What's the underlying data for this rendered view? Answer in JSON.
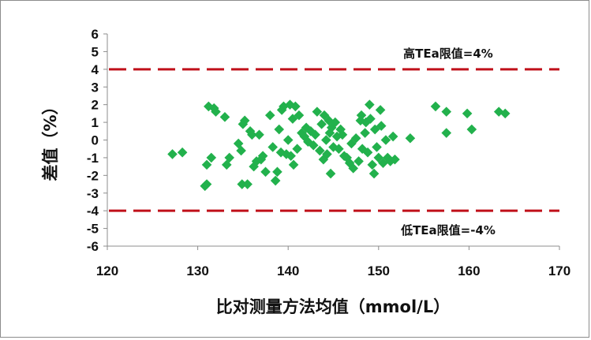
{
  "chart_data": {
    "type": "scatter",
    "title": "",
    "xlabel": "比对测量方法均值（mmol/L）",
    "ylabel": "差值（%）",
    "xlim": [
      120,
      170
    ],
    "ylim": [
      -6,
      6
    ],
    "x_ticks": [
      "120",
      "130",
      "140",
      "150",
      "160",
      "170"
    ],
    "y_ticks": [
      "-6",
      "-5",
      "-4",
      "-3",
      "-2",
      "-1",
      "0",
      "1",
      "2",
      "3",
      "4",
      "5",
      "6"
    ],
    "grid": false,
    "legend": "none",
    "colors": {
      "points": "#22b14c",
      "limit_lines": "#c0101a"
    },
    "reference_lines": [
      {
        "y": 4,
        "label": "高TEa限值=4%",
        "style": "dashed"
      },
      {
        "y": -4,
        "label": "低TEa限值=-4%",
        "style": "dashed"
      }
    ],
    "series": [
      {
        "points": [
          [
            127.2,
            -0.8
          ],
          [
            128.3,
            -0.7
          ],
          [
            130.8,
            -2.6
          ],
          [
            131.0,
            -2.5
          ],
          [
            131.0,
            -1.4
          ],
          [
            131.2,
            1.9
          ],
          [
            131.5,
            -1.0
          ],
          [
            131.8,
            1.8
          ],
          [
            132.0,
            1.6
          ],
          [
            133.0,
            1.3
          ],
          [
            133.2,
            -1.4
          ],
          [
            133.5,
            -1.0
          ],
          [
            134.5,
            -0.2
          ],
          [
            134.8,
            -0.6
          ],
          [
            134.9,
            -2.5
          ],
          [
            135.0,
            0.9
          ],
          [
            135.2,
            1.1
          ],
          [
            135.5,
            -2.5
          ],
          [
            135.8,
            0.5
          ],
          [
            136.0,
            0.3
          ],
          [
            136.2,
            -1.5
          ],
          [
            136.5,
            -1.2
          ],
          [
            136.8,
            0.3
          ],
          [
            137.0,
            -1.1
          ],
          [
            137.2,
            -0.9
          ],
          [
            137.5,
            -1.8
          ],
          [
            138.0,
            1.4
          ],
          [
            138.3,
            -0.4
          ],
          [
            138.6,
            -2.3
          ],
          [
            138.8,
            -1.8
          ],
          [
            139.0,
            0.6
          ],
          [
            139.2,
            -0.7
          ],
          [
            139.3,
            1.7
          ],
          [
            139.5,
            1.9
          ],
          [
            139.8,
            -0.8
          ],
          [
            140.0,
            0.0
          ],
          [
            140.2,
            2.0
          ],
          [
            140.3,
            -0.9
          ],
          [
            140.5,
            1.2
          ],
          [
            140.6,
            -1.4
          ],
          [
            140.8,
            1.9
          ],
          [
            141.0,
            -0.5
          ],
          [
            141.2,
            1.4
          ],
          [
            141.5,
            0.4
          ],
          [
            141.8,
            0.2
          ],
          [
            142.0,
            0.7
          ],
          [
            142.2,
            -0.1
          ],
          [
            142.5,
            0.5
          ],
          [
            142.8,
            -0.3
          ],
          [
            143.0,
            0.3
          ],
          [
            143.2,
            1.6
          ],
          [
            143.5,
            -0.6
          ],
          [
            143.7,
            0.9
          ],
          [
            143.9,
            -1.1
          ],
          [
            144.0,
            1.4
          ],
          [
            144.2,
            0.0
          ],
          [
            144.3,
            -0.8
          ],
          [
            144.5,
            1.1
          ],
          [
            144.6,
            0.4
          ],
          [
            144.7,
            -1.9
          ],
          [
            144.8,
            0.7
          ],
          [
            145.0,
            -0.4
          ],
          [
            145.2,
            1.0
          ],
          [
            145.4,
            0.2
          ],
          [
            145.6,
            -0.5
          ],
          [
            145.8,
            0.6
          ],
          [
            146.0,
            0.3
          ],
          [
            146.2,
            -0.9
          ],
          [
            146.5,
            -1.0
          ],
          [
            146.8,
            -1.3
          ],
          [
            147.0,
            -0.2
          ],
          [
            147.2,
            -1.6
          ],
          [
            147.5,
            0.1
          ],
          [
            147.8,
            -1.2
          ],
          [
            148.0,
            1.1
          ],
          [
            148.1,
            1.4
          ],
          [
            148.2,
            -0.5
          ],
          [
            148.5,
            0.4
          ],
          [
            148.6,
            1.0
          ],
          [
            148.8,
            -0.7
          ],
          [
            149.0,
            2.0
          ],
          [
            149.1,
            1.2
          ],
          [
            149.3,
            -1.4
          ],
          [
            149.5,
            -1.9
          ],
          [
            149.6,
            0.6
          ],
          [
            149.8,
            -0.4
          ],
          [
            150.0,
            -1.0
          ],
          [
            150.2,
            1.7
          ],
          [
            150.3,
            0.8
          ],
          [
            150.5,
            -1.3
          ],
          [
            150.8,
            0.0
          ],
          [
            151.0,
            -1.0
          ],
          [
            151.3,
            -1.2
          ],
          [
            151.6,
            0.2
          ],
          [
            151.8,
            -1.1
          ],
          [
            153.5,
            0.1
          ],
          [
            156.3,
            1.9
          ],
          [
            157.5,
            1.6
          ],
          [
            157.5,
            0.4
          ],
          [
            159.8,
            1.5
          ],
          [
            160.3,
            0.6
          ],
          [
            163.3,
            1.6
          ],
          [
            164.0,
            1.5
          ]
        ]
      }
    ]
  }
}
